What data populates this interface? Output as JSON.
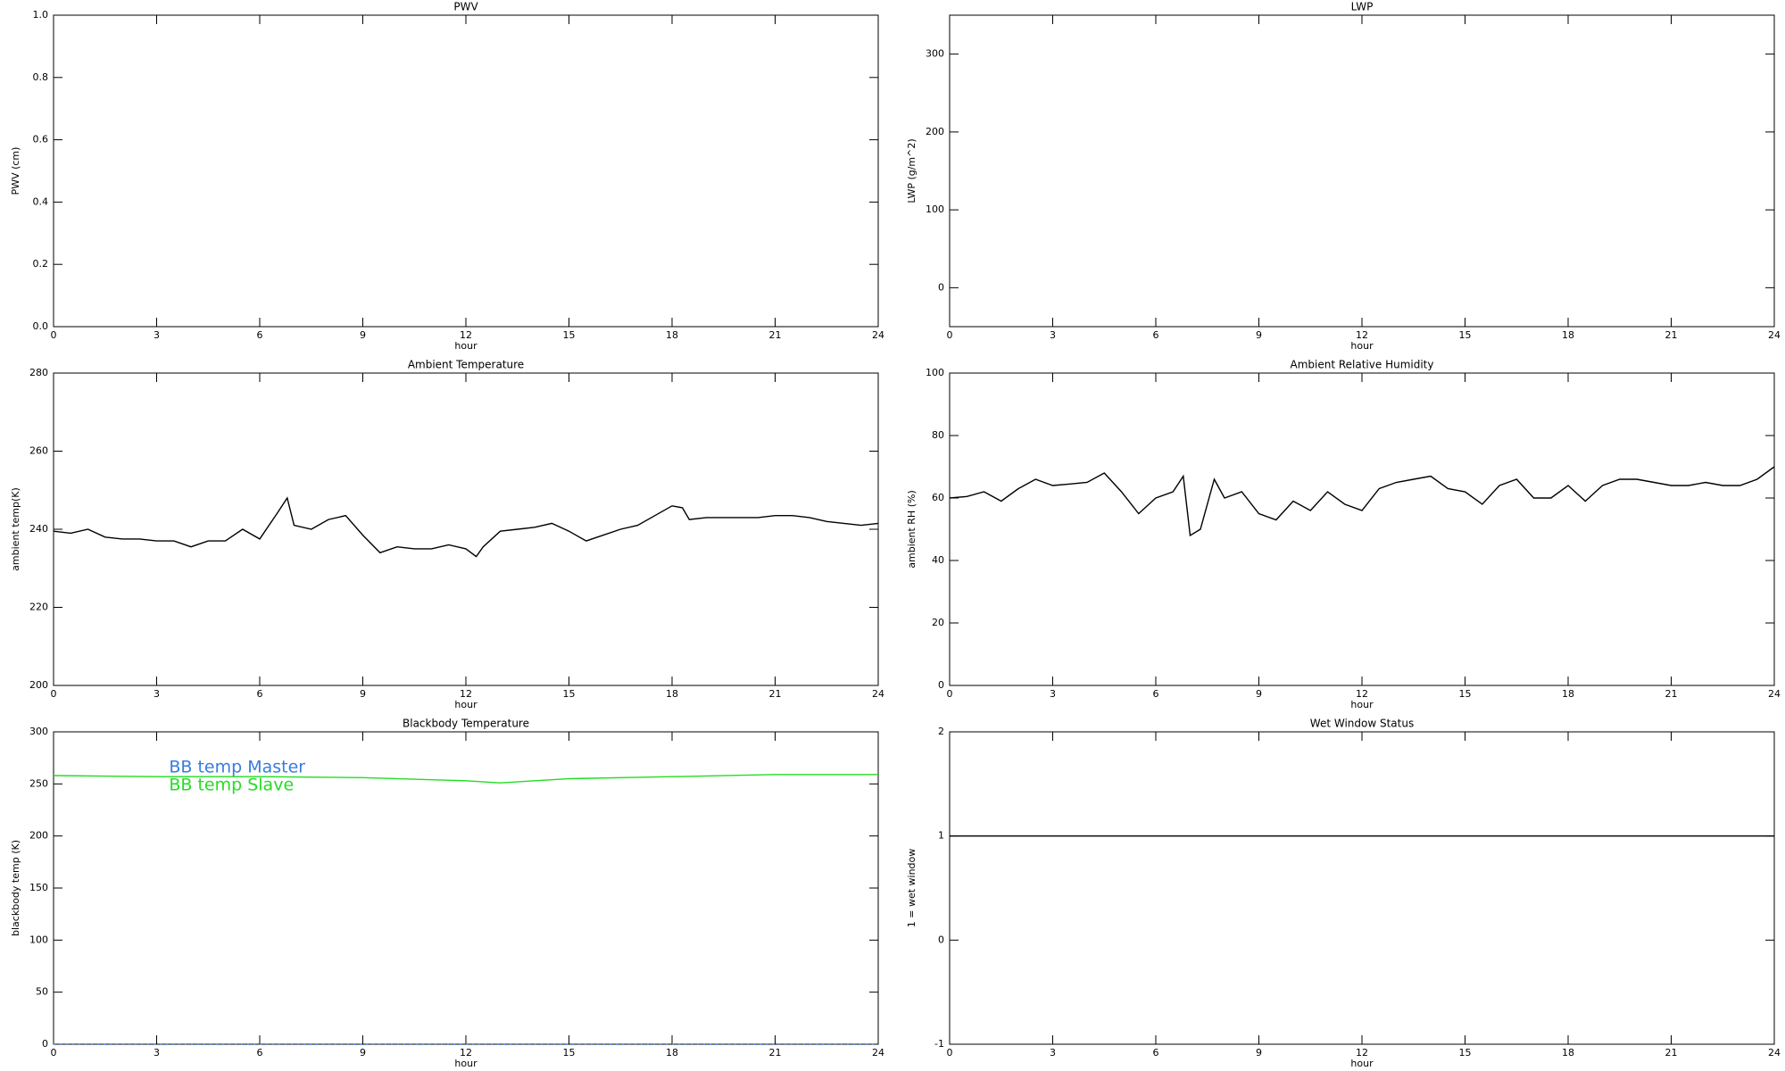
{
  "chart_data": [
    {
      "type": "line",
      "title": "PWV",
      "xlabel": "hour",
      "ylabel": "PWV (cm)",
      "xlim": [
        0,
        24
      ],
      "xticks": [
        0,
        3,
        6,
        9,
        12,
        15,
        18,
        21,
        24
      ],
      "ylim": [
        0,
        1
      ],
      "yticks": [
        {
          "value": 0,
          "label": "0.0"
        },
        0.2,
        0.4,
        0.6,
        0.8,
        {
          "value": 1,
          "label": "1.0"
        }
      ]
    },
    {
      "type": "line",
      "title": "LWP",
      "xlabel": "hour",
      "ylabel": "LWP (g/m^2)",
      "xlim": [
        0,
        24
      ],
      "xticks": [
        0,
        3,
        6,
        9,
        12,
        15,
        18,
        21,
        24
      ],
      "ylim": [
        -50,
        350
      ],
      "yticks": [
        0,
        100,
        200,
        300
      ]
    },
    {
      "type": "line",
      "title": "Ambient Temperature",
      "xlabel": "hour",
      "ylabel": "ambient temp(K)",
      "xlim": [
        0,
        24
      ],
      "xticks": [
        0,
        3,
        6,
        9,
        12,
        15,
        18,
        21,
        24
      ],
      "ylim": [
        200,
        280
      ],
      "yticks": [
        200,
        220,
        240,
        260,
        280
      ],
      "x": [
        0,
        0.5,
        1,
        1.5,
        2,
        2.5,
        3,
        3.5,
        4,
        4.5,
        5,
        5.5,
        6,
        6.5,
        6.8,
        7,
        7.5,
        8,
        8.5,
        9,
        9.5,
        10,
        10.5,
        11,
        11.5,
        12,
        12.3,
        12.5,
        13,
        13.5,
        14,
        14.5,
        15,
        15.5,
        16,
        16.5,
        17,
        17.5,
        18,
        18.3,
        18.5,
        19,
        19.5,
        20,
        20.5,
        21,
        21.5,
        22,
        22.5,
        23,
        23.5,
        24
      ],
      "series": [
        {
          "color": "#000000",
          "values": [
            239.5,
            239,
            240,
            238,
            237.5,
            237.5,
            237,
            237,
            235.5,
            237,
            237,
            240,
            237.5,
            244,
            248,
            241,
            240,
            242.5,
            243.5,
            238.5,
            234,
            235.5,
            235,
            235,
            236,
            235,
            233,
            235.5,
            239.5,
            240,
            240.5,
            241.5,
            239.5,
            237,
            238.5,
            240,
            241,
            243.5,
            246,
            245.5,
            242.5,
            243,
            243,
            243,
            243,
            243.5,
            243.5,
            243,
            242,
            241.5,
            241,
            241.5
          ]
        }
      ]
    },
    {
      "type": "line",
      "title": "Ambient Relative Humidity",
      "xlabel": "hour",
      "ylabel": "ambient RH (%)",
      "xlim": [
        0,
        24
      ],
      "xticks": [
        0,
        3,
        6,
        9,
        12,
        15,
        18,
        21,
        24
      ],
      "ylim": [
        0,
        100
      ],
      "yticks": [
        0,
        20,
        40,
        60,
        80,
        100
      ],
      "x": [
        0,
        0.5,
        1,
        1.5,
        2,
        2.5,
        3,
        3.5,
        4,
        4.5,
        5,
        5.5,
        6,
        6.5,
        6.8,
        7,
        7.3,
        7.7,
        8,
        8.5,
        9,
        9.5,
        10,
        10.5,
        11,
        11.5,
        12,
        12.5,
        13,
        13.5,
        14,
        14.5,
        15,
        15.5,
        16,
        16.5,
        17,
        17.5,
        18,
        18.5,
        19,
        19.5,
        20,
        20.5,
        21,
        21.5,
        22,
        22.5,
        23,
        23.5,
        24
      ],
      "series": [
        {
          "color": "#000000",
          "values": [
            60,
            60.5,
            62,
            59,
            63,
            66,
            64,
            64.5,
            65,
            68,
            62,
            55,
            60,
            62,
            67,
            48,
            50,
            66,
            60,
            62,
            55,
            53,
            59,
            56,
            62,
            58,
            56,
            63,
            65,
            66,
            67,
            63,
            62,
            58,
            64,
            66,
            60,
            60,
            64,
            59,
            64,
            66,
            66,
            65,
            64,
            64,
            65,
            64,
            64,
            66,
            70
          ]
        }
      ]
    },
    {
      "type": "line",
      "title": "Blackbody Temperature",
      "xlabel": "hour",
      "ylabel": "blackbody temp (K)",
      "xlim": [
        0,
        24
      ],
      "xticks": [
        0,
        3,
        6,
        9,
        12,
        15,
        18,
        21,
        24
      ],
      "ylim": [
        0,
        300
      ],
      "yticks": [
        0,
        50,
        100,
        150,
        200,
        250,
        300
      ],
      "legend": "upper left",
      "x": [
        0,
        3,
        6,
        9,
        12,
        13,
        15,
        18,
        21,
        24
      ],
      "series": [
        {
          "name": "BB temp Master",
          "color": "#3a7be0",
          "dotted": true,
          "values": [
            0,
            0,
            0,
            0,
            0,
            0,
            0,
            0,
            0,
            0
          ]
        },
        {
          "name": "BB temp Slave",
          "color": "#22dd22",
          "values": [
            258,
            257,
            257,
            256,
            253,
            251,
            255,
            257,
            259,
            259
          ]
        }
      ]
    },
    {
      "type": "line",
      "title": "Wet Window Status",
      "xlabel": "hour",
      "ylabel": "1 = wet window",
      "xlim": [
        0,
        24
      ],
      "xticks": [
        0,
        3,
        6,
        9,
        12,
        15,
        18,
        21,
        24
      ],
      "ylim": [
        -1,
        2
      ],
      "yticks": [
        -1,
        0,
        1,
        2
      ],
      "x": [
        0,
        24
      ],
      "series": [
        {
          "color": "#000000",
          "values": [
            1,
            1
          ]
        }
      ]
    }
  ]
}
